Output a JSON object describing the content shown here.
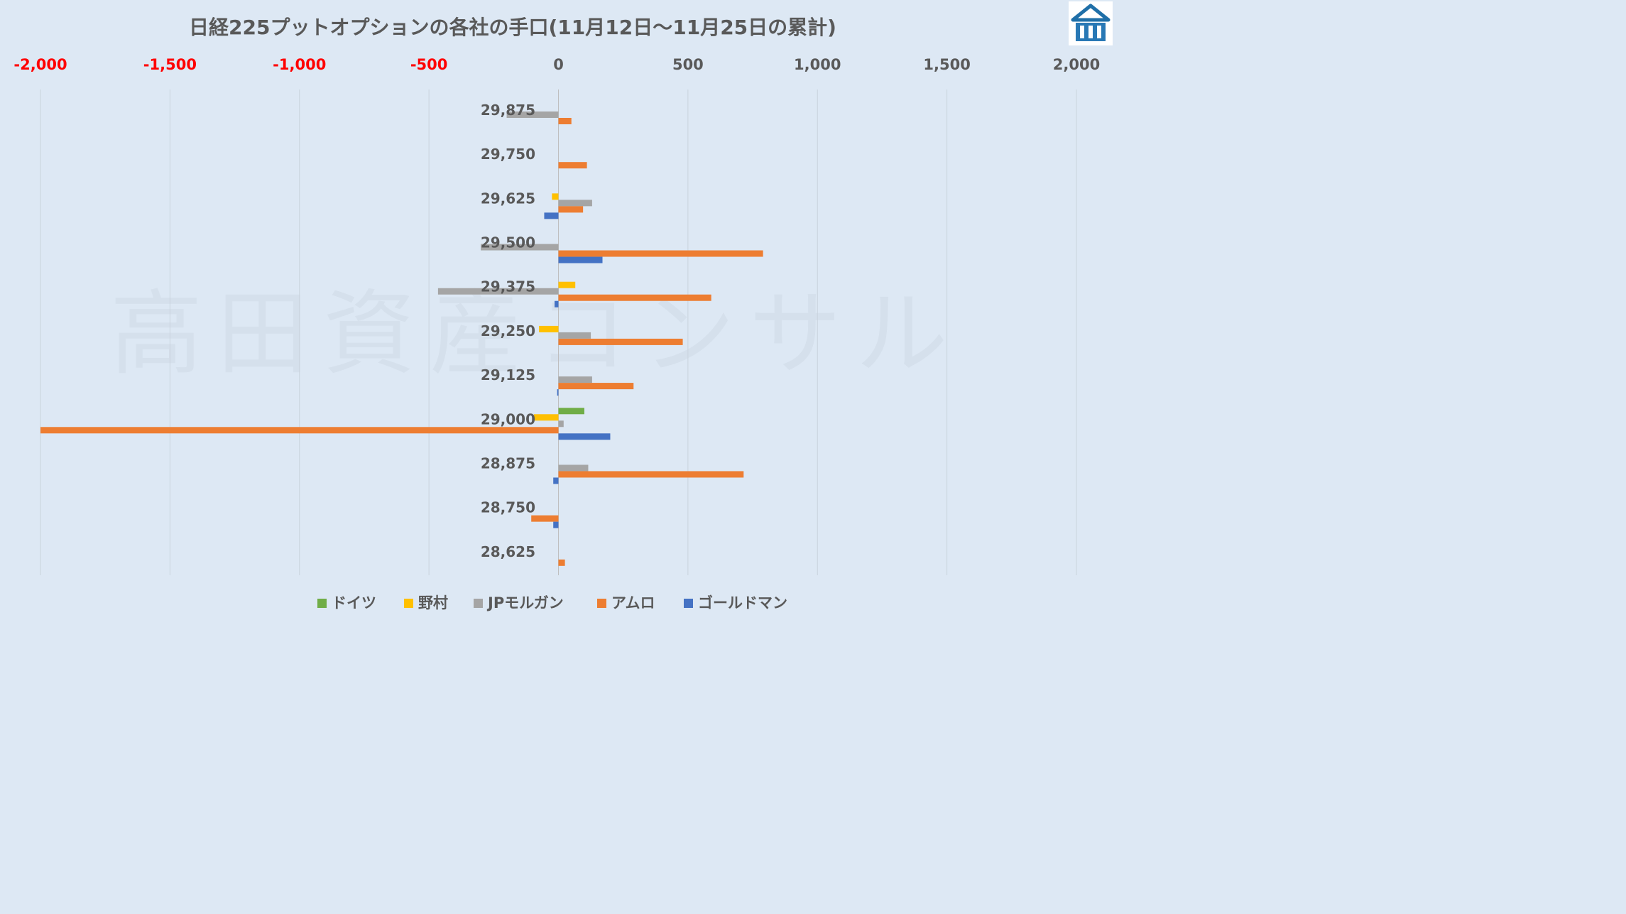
{
  "logo": {
    "name": "site-logo"
  },
  "watermark": "高田資産コンサル",
  "chart_data": {
    "type": "bar",
    "orientation": "horizontal",
    "title": "日経225プットオプションの各社の手口(11月12日～11月25日の累計)",
    "xlim": [
      -2000,
      2000
    ],
    "x_ticks": [
      {
        "value": -2000,
        "label": "-2,000",
        "color": "#ff0000"
      },
      {
        "value": -1500,
        "label": "-1,500",
        "color": "#ff0000"
      },
      {
        "value": -1000,
        "label": "-1,000",
        "color": "#ff0000"
      },
      {
        "value": -500,
        "label": "-500",
        "color": "#ff0000"
      },
      {
        "value": 0,
        "label": "0",
        "color": "#595959"
      },
      {
        "value": 500,
        "label": "500",
        "color": "#595959"
      },
      {
        "value": 1000,
        "label": "1,000",
        "color": "#595959"
      },
      {
        "value": 1500,
        "label": "1,500",
        "color": "#595959"
      },
      {
        "value": 2000,
        "label": "2,000",
        "color": "#595959"
      }
    ],
    "grid": true,
    "legend_position": "bottom",
    "categories": [
      "29,875",
      "29,750",
      "29,625",
      "29,500",
      "29,375",
      "29,250",
      "29,125",
      "29,000",
      "28,875",
      "28,750",
      "28,625"
    ],
    "series": [
      {
        "name": "ドイツ",
        "color": "#70ad47",
        "values": [
          0,
          0,
          0,
          0,
          0,
          0,
          0,
          100,
          0,
          0,
          0
        ]
      },
      {
        "name": "野村",
        "color": "#ffc000",
        "values": [
          0,
          0,
          -25,
          0,
          65,
          -75,
          0,
          -95,
          0,
          0,
          0
        ]
      },
      {
        "name": "JPモルガン",
        "color": "#a5a5a5",
        "values": [
          -200,
          0,
          130,
          -300,
          -465,
          125,
          130,
          20,
          115,
          0,
          0
        ]
      },
      {
        "name": "アムロ",
        "color": "#ed7d31",
        "values": [
          50,
          110,
          95,
          790,
          590,
          480,
          290,
          -2000,
          715,
          -105,
          25
        ]
      },
      {
        "name": "ゴールドマン",
        "color": "#4472c4",
        "values": [
          0,
          0,
          -55,
          170,
          -15,
          0,
          -5,
          200,
          -20,
          -20,
          0
        ]
      }
    ]
  }
}
